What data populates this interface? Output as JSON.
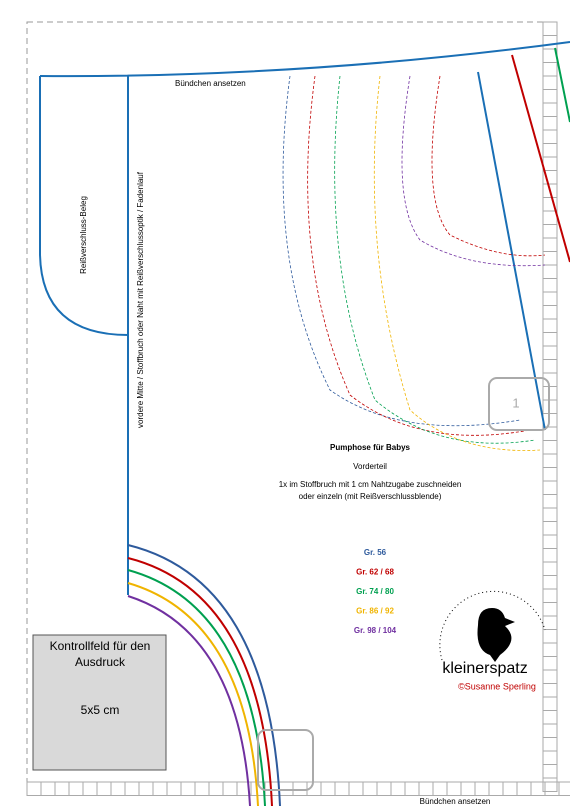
{
  "header": {
    "top_label": "Bündchen ansetzen",
    "bottom_label": "Bündchen ansetzen"
  },
  "pattern": {
    "facing_label": "Reißverschluss-Beleg",
    "center_label": "vordere Mitte / Stoffbruch oder Naht mit Reißverschlussoptik / Fadenlauf",
    "page_number": "1"
  },
  "info": {
    "title": "Pumphose für Babys",
    "piece": "Vorderteil",
    "instructions": [
      "1x im Stoffbruch mit 1 cm Nahtzugabe zuschneiden",
      "oder einzeln (mit Reißverschlussblende)"
    ]
  },
  "sizes": [
    {
      "label": "Gr. 56",
      "color": "#2e5a9c"
    },
    {
      "label": "Gr. 62 / 68",
      "color": "#c00000"
    },
    {
      "label": "Gr. 74 / 80",
      "color": "#00a050"
    },
    {
      "label": "Gr. 86 / 92",
      "color": "#f0b400"
    },
    {
      "label": "Gr. 98 / 104",
      "color": "#7030a0"
    }
  ],
  "control_box": {
    "lines": [
      "Kontrollfeld für den",
      "Ausdruck"
    ],
    "size": "5x5 cm"
  },
  "brand": {
    "name": "kleinerspatz",
    "author": "©Susanne Sperling"
  }
}
